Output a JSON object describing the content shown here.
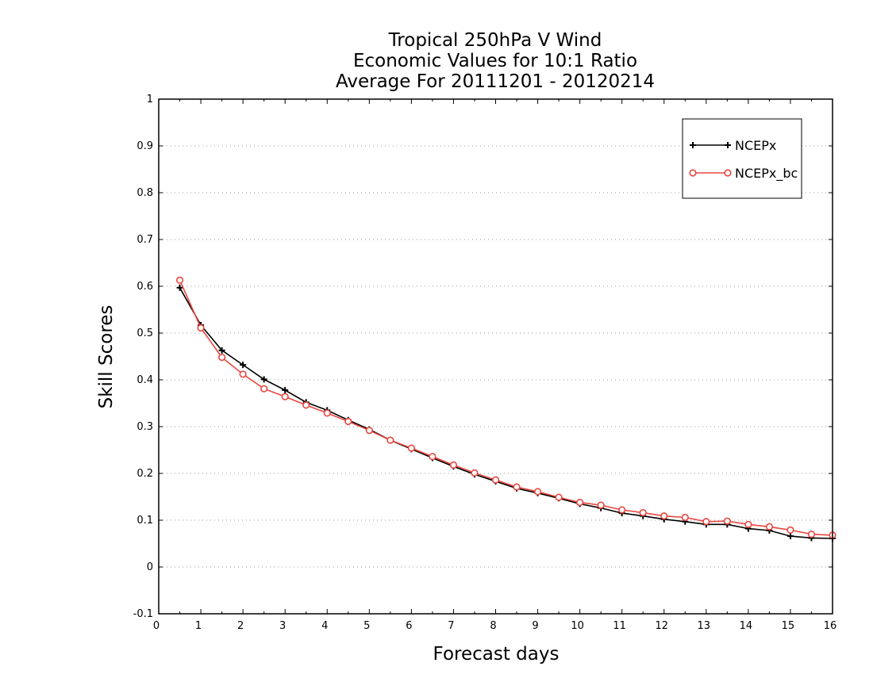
{
  "chart_data": {
    "type": "line",
    "title": [
      "Tropical 250hPa V Wind",
      "Economic Values for 10:1 Ratio",
      "Average For 20111201 - 20120214"
    ],
    "xlabel": "Forecast days",
    "ylabel": "Skill Scores",
    "xlim": [
      0,
      16
    ],
    "ylim": [
      -0.1,
      1
    ],
    "xticks": [
      0,
      1,
      2,
      3,
      4,
      5,
      6,
      7,
      8,
      9,
      10,
      11,
      12,
      13,
      14,
      15,
      16
    ],
    "xtick_labels": [
      "0",
      "1",
      "2",
      "3",
      "4",
      "5",
      "6",
      "7",
      "8",
      "9",
      "10",
      "11",
      "12",
      "13",
      "14",
      "15",
      "16"
    ],
    "yticks": [
      -0.1,
      0,
      0.1,
      0.2,
      0.3,
      0.4,
      0.5,
      0.6,
      0.7,
      0.8,
      0.9,
      1
    ],
    "ytick_labels": [
      "-0.1",
      "0",
      "0.1",
      "0.2",
      "0.3",
      "0.4",
      "0.5",
      "0.6",
      "0.7",
      "0.8",
      "0.9",
      "1"
    ],
    "grid": "horizontal-dotted",
    "legend_position": "top-right",
    "x": [
      0.5,
      1,
      1.5,
      2,
      2.5,
      3,
      3.5,
      4,
      4.5,
      5,
      5.5,
      6,
      6.5,
      7,
      7.5,
      8,
      8.5,
      9,
      9.5,
      10,
      10.5,
      11,
      11.5,
      12,
      12.5,
      13,
      13.5,
      14,
      14.5,
      15,
      15.5,
      16
    ],
    "series": [
      {
        "name": "NCEPx",
        "color": "#000000",
        "marker": "plus",
        "values": [
          0.597,
          0.517,
          0.463,
          0.432,
          0.401,
          0.378,
          0.352,
          0.335,
          0.314,
          0.294,
          0.271,
          0.252,
          0.233,
          0.215,
          0.198,
          0.183,
          0.168,
          0.158,
          0.147,
          0.135,
          0.126,
          0.115,
          0.109,
          0.102,
          0.097,
          0.091,
          0.091,
          0.082,
          0.078,
          0.066,
          0.062,
          0.061
        ]
      },
      {
        "name": "NCEPx_bc",
        "color": "#e8473f",
        "marker": "circle",
        "values": [
          0.613,
          0.511,
          0.448,
          0.412,
          0.381,
          0.364,
          0.346,
          0.329,
          0.311,
          0.292,
          0.271,
          0.254,
          0.236,
          0.218,
          0.201,
          0.186,
          0.171,
          0.161,
          0.149,
          0.138,
          0.132,
          0.122,
          0.116,
          0.109,
          0.106,
          0.097,
          0.098,
          0.091,
          0.086,
          0.079,
          0.07,
          0.068
        ]
      }
    ]
  }
}
